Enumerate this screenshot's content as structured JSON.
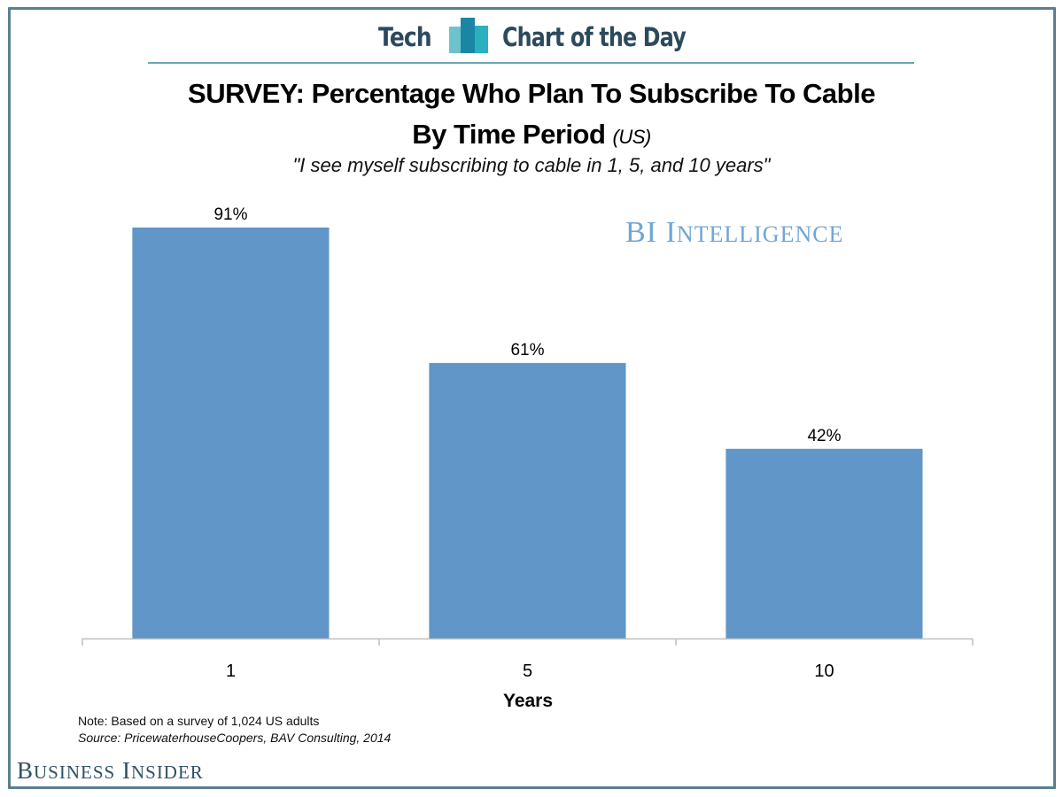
{
  "header": {
    "section": "Tech",
    "series_name": "Chart of the Day",
    "logo_icon": "bar-chart-logo-icon",
    "colors": {
      "text": "#2c4a5e",
      "rule": "#6aa4b4",
      "logo_light": "#6cc3cc",
      "logo_dark": "#1b86a4",
      "logo_mid": "#2bb0c0"
    }
  },
  "watermark": {
    "first": "BI",
    "rest_initial": "I",
    "rest": "NTELLIGENCE",
    "color": "#6fa6d6"
  },
  "footer": {
    "note": "Note: Based on a survey of 1,024 US adults",
    "source": "Source: PricewaterhouseCoopers, BAV Consulting, 2014",
    "brand_b": "B",
    "brand_usiness": "USINESS",
    "brand_i": "I",
    "brand_nsider": "NSIDER",
    "brand_color": "#2e5064"
  },
  "frame_color": "#5a7f8f",
  "chart_data": {
    "type": "bar",
    "title": "SURVEY: Percentage Who Plan To Subscribe To Cable",
    "title_line2": "By Time Period",
    "title_region": "(US)",
    "subtitle": "\"I see myself subscribing to cable in 1, 5, and 10 years\"",
    "categories": [
      "1",
      "5",
      "10"
    ],
    "values": [
      91,
      61,
      42
    ],
    "data_labels": [
      "91%",
      "61%",
      "42%"
    ],
    "xlabel": "Years",
    "ylabel": "",
    "ylim": [
      0,
      100
    ],
    "grid": false,
    "legend": "none",
    "bar_color": "#6096c8",
    "axis_color": "#bfbfbf"
  }
}
